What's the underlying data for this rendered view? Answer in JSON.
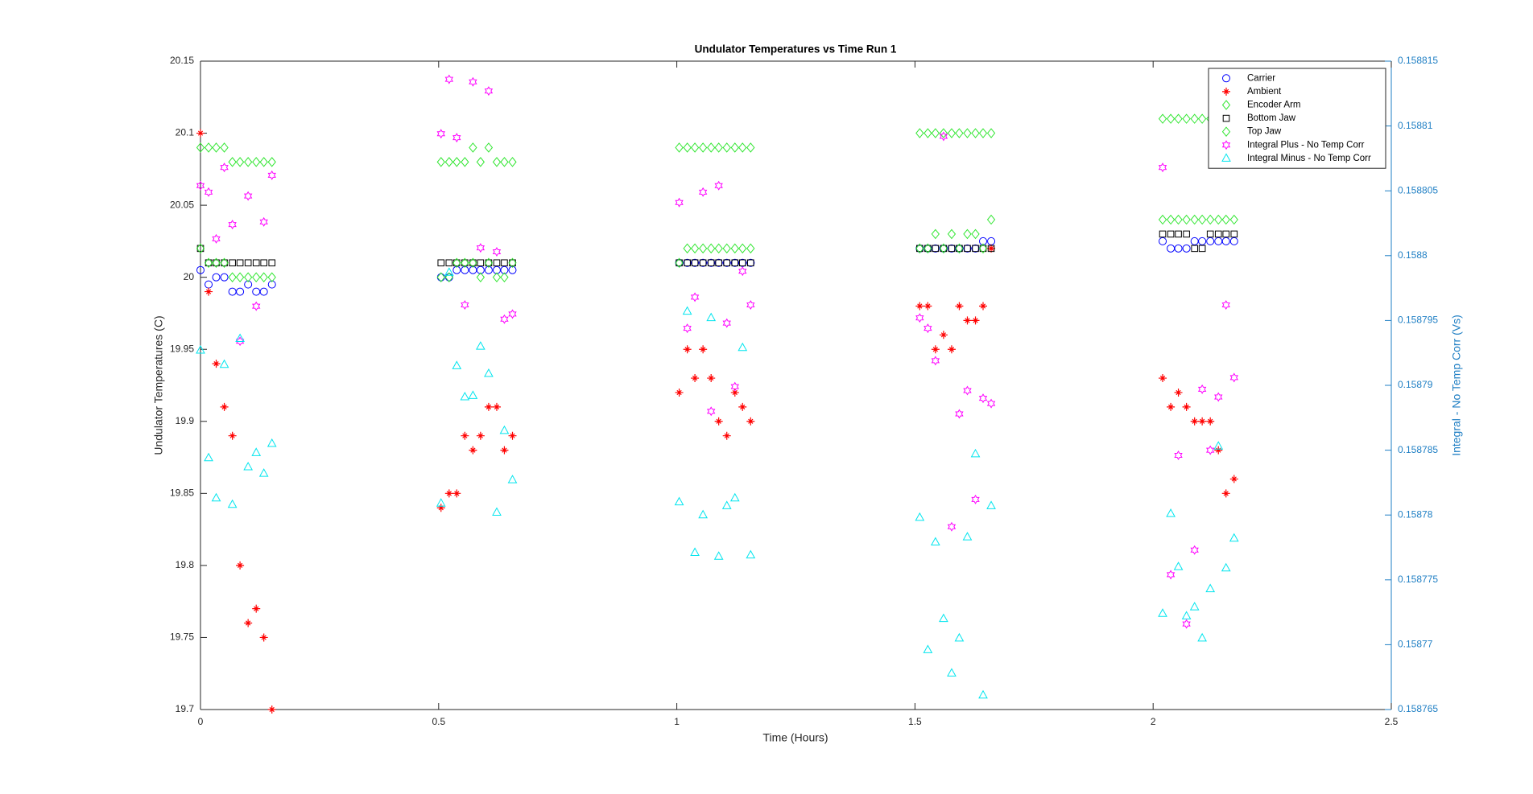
{
  "chart_data": {
    "type": "scatter",
    "title": "Undulator Temperatures vs Time Run 1",
    "xlabel": "Time (Hours)",
    "ylabel": "Undulator Temperatures (C)",
    "y2label": "Integral -  No Temp Corr (Vs)",
    "xlim": [
      0,
      2.5
    ],
    "xticks": [
      0,
      0.5,
      1,
      1.5,
      2,
      2.5
    ],
    "ylim": [
      19.7,
      20.15
    ],
    "yticks": [
      19.7,
      19.75,
      19.8,
      19.85,
      19.9,
      19.95,
      20,
      20.05,
      20.1,
      20.15
    ],
    "y2lim": [
      0.158765,
      0.158815
    ],
    "y2ticks": [
      0.158765,
      0.15877,
      0.158775,
      0.15878,
      0.158785,
      0.15879,
      0.158795,
      0.1588,
      0.158805,
      0.15881,
      0.158815
    ],
    "y2color": "#1f7fc4",
    "legend": "northeast",
    "x": [
      0,
      0.017,
      0.033,
      0.05,
      0.067,
      0.083,
      0.1,
      0.117,
      0.133,
      0.15,
      0.505,
      0.522,
      0.538,
      0.555,
      0.572,
      0.588,
      0.605,
      0.622,
      0.638,
      0.655,
      1.005,
      1.022,
      1.038,
      1.055,
      1.072,
      1.088,
      1.105,
      1.122,
      1.138,
      1.155,
      1.51,
      1.527,
      1.543,
      1.56,
      1.577,
      1.593,
      1.61,
      1.627,
      1.643,
      1.66,
      2.02,
      2.037,
      2.053,
      2.07,
      2.087,
      2.103,
      2.12,
      2.137,
      2.153,
      2.17
    ],
    "series": [
      {
        "name": "Carrier",
        "color": "#0000ff",
        "marker": "o",
        "values": [
          20.005,
          19.995,
          20,
          20,
          19.99,
          19.99,
          19.995,
          19.99,
          19.99,
          19.995,
          20,
          20,
          20.005,
          20.005,
          20.005,
          20.005,
          20.005,
          20.005,
          20.005,
          20.005,
          20.01,
          20.01,
          20.01,
          20.01,
          20.01,
          20.01,
          20.01,
          20.01,
          20.01,
          20.01,
          20.02,
          20.02,
          20.02,
          20.02,
          20.02,
          20.02,
          20.02,
          20.02,
          20.025,
          20.025,
          20.025,
          20.02,
          20.02,
          20.02,
          20.025,
          20.025,
          20.025,
          20.025,
          20.025,
          20.025
        ]
      },
      {
        "name": "Ambient",
        "color": "#ff0000",
        "marker": "*",
        "values": [
          20.1,
          19.99,
          19.94,
          19.91,
          19.89,
          19.8,
          19.76,
          19.77,
          19.75,
          19.7,
          19.84,
          19.85,
          19.85,
          19.89,
          19.88,
          19.89,
          19.91,
          19.91,
          19.88,
          19.89,
          19.92,
          19.95,
          19.93,
          19.95,
          19.93,
          19.9,
          19.89,
          19.92,
          19.91,
          19.9,
          19.98,
          19.98,
          19.95,
          19.96,
          19.95,
          19.98,
          19.97,
          19.97,
          19.98,
          20.02,
          19.93,
          19.91,
          19.92,
          19.91,
          19.9,
          19.9,
          19.9,
          19.88,
          19.85,
          19.86
        ]
      },
      {
        "name": "Encoder Arm",
        "color": "#33e633",
        "marker": "d",
        "values": [
          20.09,
          20.09,
          20.09,
          20.09,
          20.08,
          20.08,
          20.08,
          20.08,
          20.08,
          20.08,
          20.08,
          20.08,
          20.08,
          20.08,
          20.09,
          20.08,
          20.09,
          20.08,
          20.08,
          20.08,
          20.09,
          20.09,
          20.09,
          20.09,
          20.09,
          20.09,
          20.09,
          20.09,
          20.09,
          20.09,
          20.1,
          20.1,
          20.1,
          20.1,
          20.1,
          20.1,
          20.1,
          20.1,
          20.1,
          20.1,
          20.11,
          20.11,
          20.11,
          20.11,
          20.11,
          20.11,
          20.11,
          20.11,
          20.11,
          20.11
        ]
      },
      {
        "name": "Bottom Jaw",
        "color": "#000000",
        "marker": "s",
        "values": [
          20.02,
          20.01,
          20.01,
          20.01,
          20.01,
          20.01,
          20.01,
          20.01,
          20.01,
          20.01,
          20.01,
          20.01,
          20.01,
          20.01,
          20.01,
          20.01,
          20.01,
          20.01,
          20.01,
          20.01,
          20.01,
          20.01,
          20.01,
          20.01,
          20.01,
          20.01,
          20.01,
          20.01,
          20.01,
          20.01,
          20.02,
          20.02,
          20.02,
          20.02,
          20.02,
          20.02,
          20.02,
          20.02,
          20.02,
          20.02,
          20.03,
          20.03,
          20.03,
          20.03,
          20.02,
          20.02,
          20.03,
          20.03,
          20.03,
          20.03
        ]
      },
      {
        "name": "Top Jaw",
        "color": "#33e633",
        "marker": "d",
        "values": [
          20.02,
          20.01,
          20.01,
          20.01,
          20,
          20,
          20,
          20,
          20,
          20,
          20,
          20,
          20.01,
          20.01,
          20.01,
          20,
          20.01,
          20,
          20,
          20.01,
          20.01,
          20.02,
          20.02,
          20.02,
          20.02,
          20.02,
          20.02,
          20.02,
          20.02,
          20.02,
          20.02,
          20.02,
          20.03,
          20.02,
          20.03,
          20.02,
          20.03,
          20.03,
          20.02,
          20.04,
          20.04,
          20.04,
          20.04,
          20.04,
          20.04,
          20.04,
          20.04,
          20.04,
          20.04,
          20.04
        ]
      },
      {
        "name": "Integral Plus -  No Temp Corr",
        "color": "#ff00ff",
        "marker": "h",
        "axis": "y2",
        "values": [
          0.1588054,
          0.1588049,
          0.1588013,
          0.1588068,
          0.1588024,
          0.1587934,
          0.1588046,
          0.1587961,
          0.1588026,
          0.1588062,
          0.1588094,
          0.1588136,
          0.1588091,
          0.1587962,
          0.1588134,
          0.1588006,
          0.1588127,
          0.1588003,
          0.1587951,
          0.1587955,
          0.1588041,
          0.1587944,
          0.1587968,
          0.1588049,
          0.158788,
          0.1588054,
          0.1587948,
          0.1587899,
          0.1587988,
          0.1587962,
          0.1587952,
          0.1587944,
          0.1587919,
          0.1588092,
          0.1587791,
          0.1587878,
          0.1587896,
          0.1587812,
          0.158789,
          0.1587886,
          0.1588068,
          0.1587754,
          0.1587846,
          0.1587716,
          0.1587773,
          0.1587897,
          0.158785,
          0.1587891,
          0.1587962,
          0.1587906
        ]
      },
      {
        "name": "Integral Minus -  No Temp Corr",
        "color": "#00e5ee",
        "marker": "^",
        "axis": "y2",
        "values": [
          0.1587927,
          0.1587844,
          0.1587813,
          0.1587916,
          0.1587808,
          0.1587936,
          0.1587837,
          0.1587848,
          0.1587832,
          0.1587855,
          0.1587809,
          0.1587987,
          0.1587915,
          0.1587891,
          0.1587892,
          0.158793,
          0.1587909,
          0.1587802,
          0.1587865,
          0.1587827,
          0.158781,
          0.1587957,
          0.1587771,
          0.15878,
          0.1587952,
          0.1587768,
          0.1587807,
          0.1587813,
          0.1587929,
          0.1587769,
          0.1587798,
          0.1587696,
          0.1587779,
          0.158772,
          0.1587678,
          0.1587705,
          0.1587783,
          0.1587847,
          0.1587661,
          0.1587807,
          0.1587724,
          0.1587801,
          0.158776,
          0.1587722,
          0.1587729,
          0.1587705,
          0.1587743,
          0.1587853,
          0.1587759,
          0.1587782
        ]
      }
    ]
  }
}
